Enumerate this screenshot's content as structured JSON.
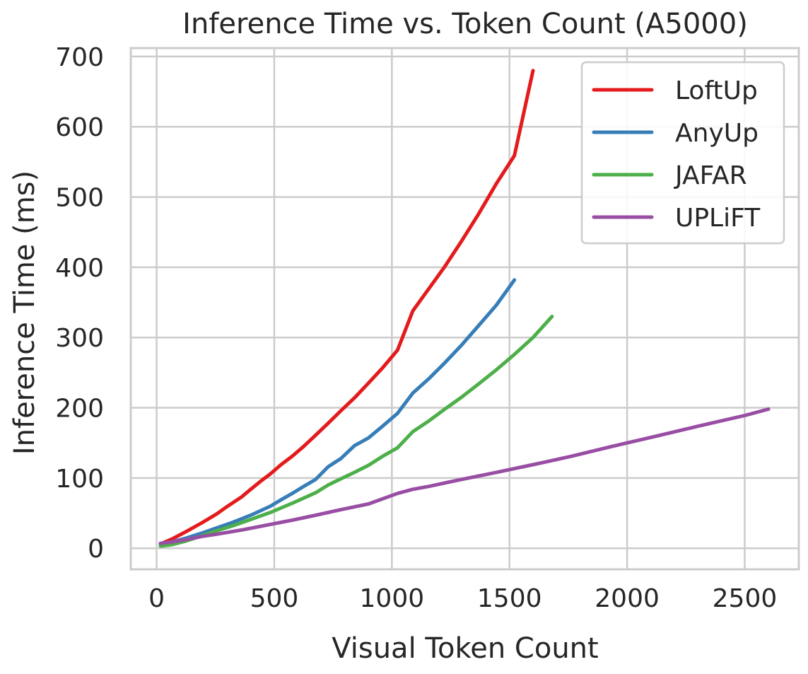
{
  "chart_data": {
    "type": "line",
    "title": "Inference Time vs. Token Count (A5000)",
    "xlabel": "Visual Token Count",
    "ylabel": "Inference Time (ms)",
    "xlim": [
      -110,
      2730
    ],
    "ylim": [
      -30,
      712
    ],
    "xticks": [
      0,
      500,
      1000,
      1500,
      2000,
      2500
    ],
    "yticks": [
      0,
      100,
      200,
      300,
      400,
      500,
      600,
      700
    ],
    "grid": true,
    "legend_position": "top-right",
    "series": [
      {
        "name": "LoftUp",
        "color": "#e41a1c",
        "points": [
          [
            16,
            6
          ],
          [
            64,
            13
          ],
          [
            121,
            23
          ],
          [
            196,
            37
          ],
          [
            256,
            49
          ],
          [
            289,
            57
          ],
          [
            361,
            73
          ],
          [
            400,
            84
          ],
          [
            441,
            95
          ],
          [
            484,
            106
          ],
          [
            529,
            119
          ],
          [
            576,
            131
          ],
          [
            625,
            145
          ],
          [
            676,
            161
          ],
          [
            729,
            178
          ],
          [
            784,
            196
          ],
          [
            841,
            214
          ],
          [
            900,
            235
          ],
          [
            961,
            257
          ],
          [
            1024,
            282
          ],
          [
            1089,
            338
          ],
          [
            1156,
            369
          ],
          [
            1225,
            401
          ],
          [
            1296,
            437
          ],
          [
            1369,
            476
          ],
          [
            1444,
            519
          ],
          [
            1521,
            559
          ],
          [
            1600,
            680
          ]
        ]
      },
      {
        "name": "AnyUp",
        "color": "#377eb8",
        "points": [
          [
            16,
            6
          ],
          [
            64,
            9
          ],
          [
            121,
            14
          ],
          [
            196,
            22
          ],
          [
            256,
            29
          ],
          [
            324,
            37
          ],
          [
            400,
            47
          ],
          [
            484,
            60
          ],
          [
            529,
            69
          ],
          [
            576,
            78
          ],
          [
            625,
            88
          ],
          [
            676,
            98
          ],
          [
            729,
            116
          ],
          [
            784,
            128
          ],
          [
            841,
            146
          ],
          [
            900,
            157
          ],
          [
            961,
            174
          ],
          [
            1024,
            192
          ],
          [
            1089,
            221
          ],
          [
            1156,
            241
          ],
          [
            1225,
            264
          ],
          [
            1296,
            289
          ],
          [
            1369,
            317
          ],
          [
            1444,
            346
          ],
          [
            1521,
            382
          ]
        ]
      },
      {
        "name": "JAFAR",
        "color": "#4daf4a",
        "points": [
          [
            16,
            3
          ],
          [
            64,
            5
          ],
          [
            121,
            10
          ],
          [
            196,
            18
          ],
          [
            256,
            25
          ],
          [
            324,
            32
          ],
          [
            400,
            41
          ],
          [
            484,
            51
          ],
          [
            576,
            64
          ],
          [
            676,
            79
          ],
          [
            729,
            90
          ],
          [
            784,
            99
          ],
          [
            841,
            108
          ],
          [
            900,
            118
          ],
          [
            961,
            131
          ],
          [
            1024,
            143
          ],
          [
            1089,
            166
          ],
          [
            1156,
            181
          ],
          [
            1225,
            198
          ],
          [
            1296,
            215
          ],
          [
            1369,
            234
          ],
          [
            1444,
            254
          ],
          [
            1521,
            276
          ],
          [
            1600,
            300
          ],
          [
            1681,
            330
          ]
        ]
      },
      {
        "name": "UPLiFT",
        "color": "#984ea3",
        "points": [
          [
            16,
            7
          ],
          [
            64,
            9
          ],
          [
            121,
            12
          ],
          [
            196,
            17
          ],
          [
            256,
            20
          ],
          [
            361,
            26
          ],
          [
            484,
            34
          ],
          [
            576,
            40
          ],
          [
            676,
            47
          ],
          [
            784,
            55
          ],
          [
            900,
            63
          ],
          [
            1024,
            78
          ],
          [
            1089,
            84
          ],
          [
            1156,
            88
          ],
          [
            1296,
            98
          ],
          [
            1444,
            108
          ],
          [
            1600,
            119
          ],
          [
            1764,
            131
          ],
          [
            1936,
            145
          ],
          [
            2116,
            159
          ],
          [
            2304,
            174
          ],
          [
            2500,
            189
          ],
          [
            2601,
            198
          ]
        ]
      }
    ]
  }
}
